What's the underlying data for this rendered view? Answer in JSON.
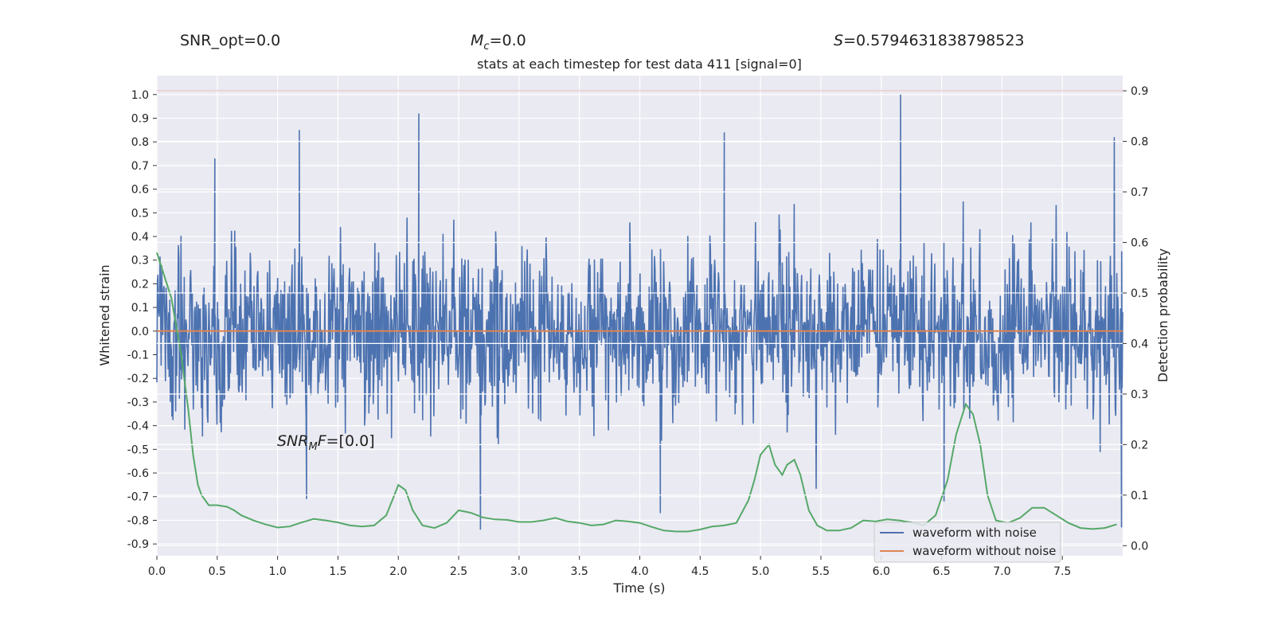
{
  "annotations": {
    "snr_opt": "SNR_opt=0.0",
    "mc_symbol": "M",
    "mc_sub": "c",
    "mc_value": "=0.0",
    "s_symbol": "S",
    "s_value": "=0.5794631838798523",
    "snr_mf_main": "SNR",
    "snr_mf_sub": "M",
    "snr_mf_rest": "F",
    "snr_mf_value": "=[0.0]"
  },
  "chart_data": {
    "type": "line",
    "title": "stats at each timestep for test data 411 [signal=0]",
    "xlabel": "Time (s)",
    "ylabel": "Whitened strain",
    "ylabel_right": "Detection probability",
    "xlim": [
      0.0,
      8.0
    ],
    "ylim": [
      -0.95,
      1.08
    ],
    "ylim_right": [
      -0.02,
      0.93
    ],
    "xticks": [
      "0.0",
      "0.5",
      "1.0",
      "1.5",
      "2.0",
      "2.5",
      "3.0",
      "3.5",
      "4.0",
      "4.5",
      "5.0",
      "5.5",
      "6.0",
      "6.5",
      "7.0",
      "7.5"
    ],
    "yticks": [
      "1.0",
      "0.9",
      "0.8",
      "0.7",
      "0.6",
      "0.5",
      "0.4",
      "0.3",
      "0.2",
      "0.1",
      "0.0",
      "-0.1",
      "-0.2",
      "-0.3",
      "-0.4",
      "-0.5",
      "-0.6",
      "-0.7",
      "-0.8",
      "-0.9"
    ],
    "yticks_right": [
      "0.9",
      "0.8",
      "0.7",
      "0.6",
      "0.5",
      "0.4",
      "0.3",
      "0.2",
      "0.1",
      "0.0"
    ],
    "threshold": 0.9,
    "grid": true,
    "legend_position": "bottom-right",
    "colors": {
      "noise": "#4c72b0",
      "clean": "#dd8452",
      "probability": "#55a868",
      "threshold": "#c44e52",
      "background": "#eaeaf2",
      "grid": "#ffffff"
    },
    "series": [
      {
        "name": "waveform with noise",
        "axis": "left",
        "description_values": {
          "amplitude_rms": 0.17,
          "max": 1.0,
          "min": -0.84,
          "notable_peaks": [
            [
              0.48,
              0.73
            ],
            [
              1.18,
              0.85
            ],
            [
              2.17,
              0.92
            ],
            [
              4.7,
              0.84
            ],
            [
              6.16,
              1.0
            ],
            [
              7.93,
              0.82
            ]
          ],
          "notable_troughs": [
            [
              2.68,
              -0.84
            ],
            [
              1.24,
              -0.71
            ],
            [
              4.17,
              -0.77
            ],
            [
              6.52,
              -0.72
            ],
            [
              7.99,
              -0.83
            ]
          ]
        }
      },
      {
        "name": "waveform without noise",
        "axis": "left",
        "x": [
          0.0,
          8.0
        ],
        "y": [
          0.0,
          0.0
        ]
      },
      {
        "name": "",
        "axis": "right",
        "x": [
          0.0,
          0.12,
          0.2,
          0.26,
          0.3,
          0.34,
          0.37,
          0.43,
          0.5,
          0.58,
          0.64,
          0.7,
          0.8,
          0.9,
          1.0,
          1.1,
          1.2,
          1.3,
          1.4,
          1.5,
          1.6,
          1.7,
          1.8,
          1.9,
          1.95,
          2.0,
          2.06,
          2.12,
          2.2,
          2.3,
          2.4,
          2.5,
          2.6,
          2.7,
          2.8,
          2.9,
          3.0,
          3.1,
          3.2,
          3.3,
          3.4,
          3.5,
          3.6,
          3.7,
          3.8,
          3.9,
          4.0,
          4.1,
          4.2,
          4.3,
          4.4,
          4.5,
          4.6,
          4.7,
          4.8,
          4.9,
          4.95,
          5.0,
          5.07,
          5.12,
          5.18,
          5.22,
          5.28,
          5.33,
          5.4,
          5.47,
          5.55,
          5.65,
          5.75,
          5.85,
          5.95,
          6.05,
          6.15,
          6.25,
          6.35,
          6.45,
          6.55,
          6.62,
          6.7,
          6.76,
          6.82,
          6.88,
          6.95,
          7.05,
          7.15,
          7.25,
          7.35,
          7.45,
          7.55,
          7.65,
          7.75,
          7.85,
          7.95
        ],
        "y": [
          0.58,
          0.49,
          0.38,
          0.27,
          0.18,
          0.12,
          0.1,
          0.08,
          0.08,
          0.077,
          0.07,
          0.06,
          0.05,
          0.042,
          0.036,
          0.038,
          0.046,
          0.053,
          0.05,
          0.046,
          0.04,
          0.038,
          0.04,
          0.06,
          0.09,
          0.12,
          0.11,
          0.07,
          0.04,
          0.035,
          0.045,
          0.07,
          0.065,
          0.056,
          0.052,
          0.051,
          0.047,
          0.047,
          0.05,
          0.055,
          0.048,
          0.045,
          0.04,
          0.042,
          0.05,
          0.048,
          0.045,
          0.037,
          0.03,
          0.028,
          0.028,
          0.032,
          0.038,
          0.04,
          0.045,
          0.09,
          0.13,
          0.18,
          0.2,
          0.16,
          0.14,
          0.16,
          0.17,
          0.14,
          0.07,
          0.04,
          0.03,
          0.03,
          0.035,
          0.05,
          0.048,
          0.052,
          0.05,
          0.046,
          0.04,
          0.06,
          0.13,
          0.22,
          0.28,
          0.26,
          0.2,
          0.1,
          0.05,
          0.045,
          0.055,
          0.075,
          0.075,
          0.06,
          0.045,
          0.035,
          0.033,
          0.035,
          0.042
        ]
      }
    ]
  }
}
